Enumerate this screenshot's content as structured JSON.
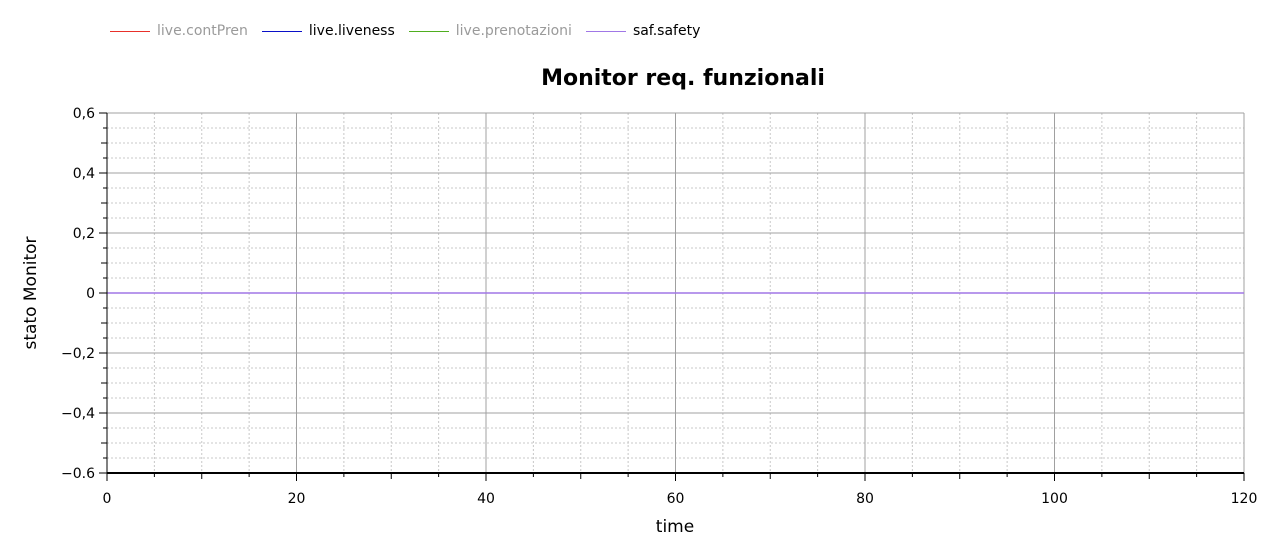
{
  "legend": [
    {
      "name": "live.contPren",
      "color": "#e8302a",
      "dimmed": true
    },
    {
      "name": "live.liveness",
      "color": "#0a10c8",
      "dimmed": false
    },
    {
      "name": "live.prenotazioni",
      "color": "#4fae1f",
      "dimmed": true
    },
    {
      "name": "saf.safety",
      "color": "#a077e6",
      "dimmed": false
    }
  ],
  "chart_data": {
    "type": "line",
    "title": "Monitor req. funzionali",
    "xlabel": "time",
    "ylabel": "stato Monitor",
    "xlim": [
      0,
      120
    ],
    "ylim": [
      -0.6,
      0.6
    ],
    "x_ticks": [
      "0",
      "20",
      "40",
      "60",
      "80",
      "100",
      "120"
    ],
    "y_ticks": [
      "0,6",
      "0,4",
      "0,2",
      "0",
      "−0,2",
      "−0,4",
      "−0.6"
    ],
    "grid": true,
    "legend_position": "top-left",
    "series": [
      {
        "name": "saf.safety",
        "color": "#a077e6",
        "x": [
          0,
          120
        ],
        "y": [
          0,
          0
        ]
      }
    ]
  }
}
